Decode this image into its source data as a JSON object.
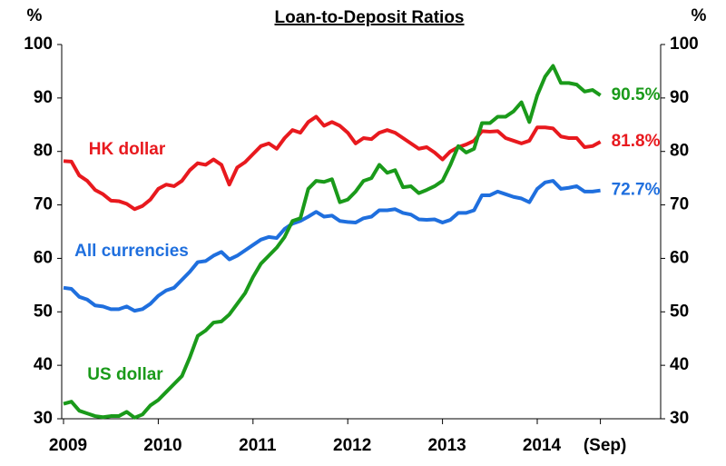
{
  "chart_data": {
    "type": "line",
    "title": "Loan-to-Deposit Ratios",
    "y_unit": "%",
    "y2_unit": "%",
    "categories": [
      "2009",
      null,
      null,
      null,
      null,
      null,
      null,
      null,
      null,
      null,
      null,
      null,
      "2010",
      null,
      null,
      null,
      null,
      null,
      null,
      null,
      null,
      null,
      null,
      null,
      "2011",
      null,
      null,
      null,
      null,
      null,
      null,
      null,
      null,
      null,
      null,
      null,
      "2012",
      null,
      null,
      null,
      null,
      null,
      null,
      null,
      null,
      null,
      null,
      null,
      "2013",
      null,
      null,
      null,
      null,
      null,
      null,
      null,
      null,
      null,
      null,
      null,
      "2014",
      null,
      null,
      null,
      null,
      null,
      null,
      null,
      "(Sep)"
    ],
    "ylim": [
      30,
      100
    ],
    "yticks": [
      30,
      40,
      50,
      60,
      70,
      80,
      90,
      100
    ],
    "y2lim": [
      30,
      100
    ],
    "y2ticks": [
      30,
      40,
      50,
      60,
      70,
      80,
      90,
      100
    ],
    "grid": false,
    "series": [
      {
        "name": "HK dollar",
        "color": "#e8191e",
        "last_label": "81.8%",
        "values": [
          78.2,
          78.1,
          75.5,
          74.5,
          72.8,
          72,
          70.8,
          70.7,
          70.2,
          69.2,
          69.8,
          71,
          73,
          73.8,
          73.5,
          74.5,
          76.5,
          77.8,
          77.5,
          78.5,
          77.5,
          73.8,
          77,
          78,
          79.5,
          81,
          81.5,
          80.5,
          82.5,
          84,
          83.5,
          85.5,
          86.5,
          84.8,
          85.5,
          84.8,
          83.5,
          81.5,
          82.5,
          82.3,
          83.5,
          84,
          83.5,
          82.5,
          81.5,
          80.5,
          80.8,
          79.8,
          78.5,
          80,
          80.8,
          81.3,
          82,
          83.8,
          83.7,
          83.8,
          82.5,
          82,
          81.5,
          82,
          84.5,
          84.5,
          84.3,
          82.8,
          82.5,
          82.5,
          80.8,
          81,
          81.8
        ]
      },
      {
        "name": "All currencies",
        "color": "#1f6fde",
        "last_label": "72.7%",
        "values": [
          54.5,
          54.3,
          52.8,
          52.3,
          51.2,
          51,
          50.5,
          50.5,
          51,
          50.2,
          50.5,
          51.5,
          53,
          54,
          54.5,
          56,
          57.5,
          59.3,
          59.5,
          60.5,
          61.2,
          59.8,
          60.5,
          61.5,
          62.5,
          63.5,
          64,
          63.8,
          65.5,
          66.5,
          67,
          67.8,
          68.7,
          67.8,
          68,
          67,
          66.8,
          66.7,
          67.5,
          67.8,
          69,
          69,
          69.2,
          68.5,
          68.2,
          67.3,
          67.2,
          67.3,
          66.7,
          67.2,
          68.5,
          68.5,
          69,
          71.8,
          71.8,
          72.5,
          72,
          71.5,
          71.2,
          70.5,
          73,
          74.2,
          74.5,
          73,
          73.2,
          73.5,
          72.5,
          72.5,
          72.7
        ]
      },
      {
        "name": "US dollar",
        "color": "#1a9a1a",
        "last_label": "90.5%",
        "values": [
          32.8,
          33.2,
          31.5,
          31,
          30.5,
          30.3,
          30.5,
          30.5,
          31.3,
          30.2,
          30.8,
          32.5,
          33.5,
          35,
          36.5,
          38,
          41.5,
          45.5,
          46.5,
          48,
          48.2,
          49.5,
          51.5,
          53.5,
          56.5,
          59,
          60.5,
          62,
          64,
          67,
          67.5,
          73,
          74.5,
          74.3,
          74.8,
          70.5,
          71,
          72.5,
          74.5,
          75,
          77.5,
          76,
          76.5,
          73.3,
          73.5,
          72.2,
          72.8,
          73.5,
          74.5,
          77.5,
          81,
          79.8,
          80.5,
          85.3,
          85.3,
          86.5,
          86.5,
          87.5,
          89.2,
          85.5,
          90.5,
          94,
          96,
          92.8,
          92.8,
          92.5,
          91.2,
          91.5,
          90.5
        ]
      }
    ]
  }
}
